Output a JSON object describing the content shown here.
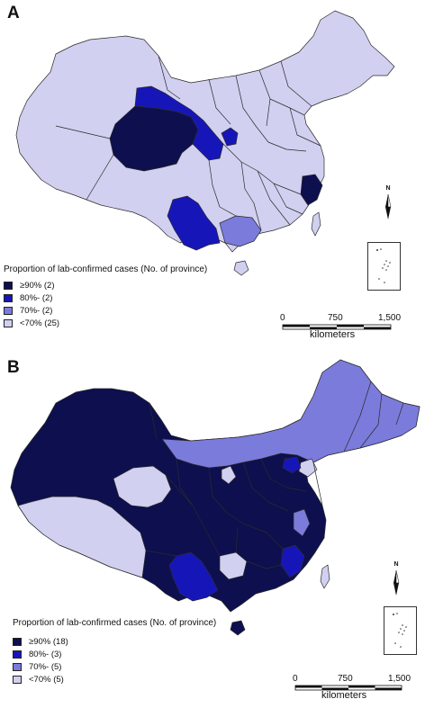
{
  "colors": {
    "c90": "#0e0f4e",
    "c80": "#1616b8",
    "c70": "#7b7bdc",
    "c_lt70": "#d1d0f0",
    "border": "#2a2a2a"
  },
  "panels": [
    {
      "letter": "A",
      "legend_title": "Proportion of lab-confirmed cases (No. of province)",
      "legend": [
        {
          "label": "≥90% (2)",
          "color_key": "c90"
        },
        {
          "label": "80%-  (2)",
          "color_key": "c80"
        },
        {
          "label": "70%-  (2)",
          "color_key": "c70"
        },
        {
          "label": "<70%  (25)",
          "color_key": "c_lt70"
        }
      ],
      "scale": {
        "ticks": [
          "0",
          "750",
          "1,500"
        ],
        "unit": "kilometers"
      },
      "north": "N"
    },
    {
      "letter": "B",
      "legend_title": "Proportion of lab-confirmed cases (No. of province)",
      "legend": [
        {
          "label": "≥90% (18)",
          "color_key": "c90"
        },
        {
          "label": "80%-  (3)",
          "color_key": "c80"
        },
        {
          "label": "70%-  (5)",
          "color_key": "c70"
        },
        {
          "label": "<70%  (5)",
          "color_key": "c_lt70"
        }
      ],
      "scale": {
        "ticks": [
          "0",
          "750",
          "1,500"
        ],
        "unit": "kilometers"
      },
      "north": "N"
    }
  ]
}
